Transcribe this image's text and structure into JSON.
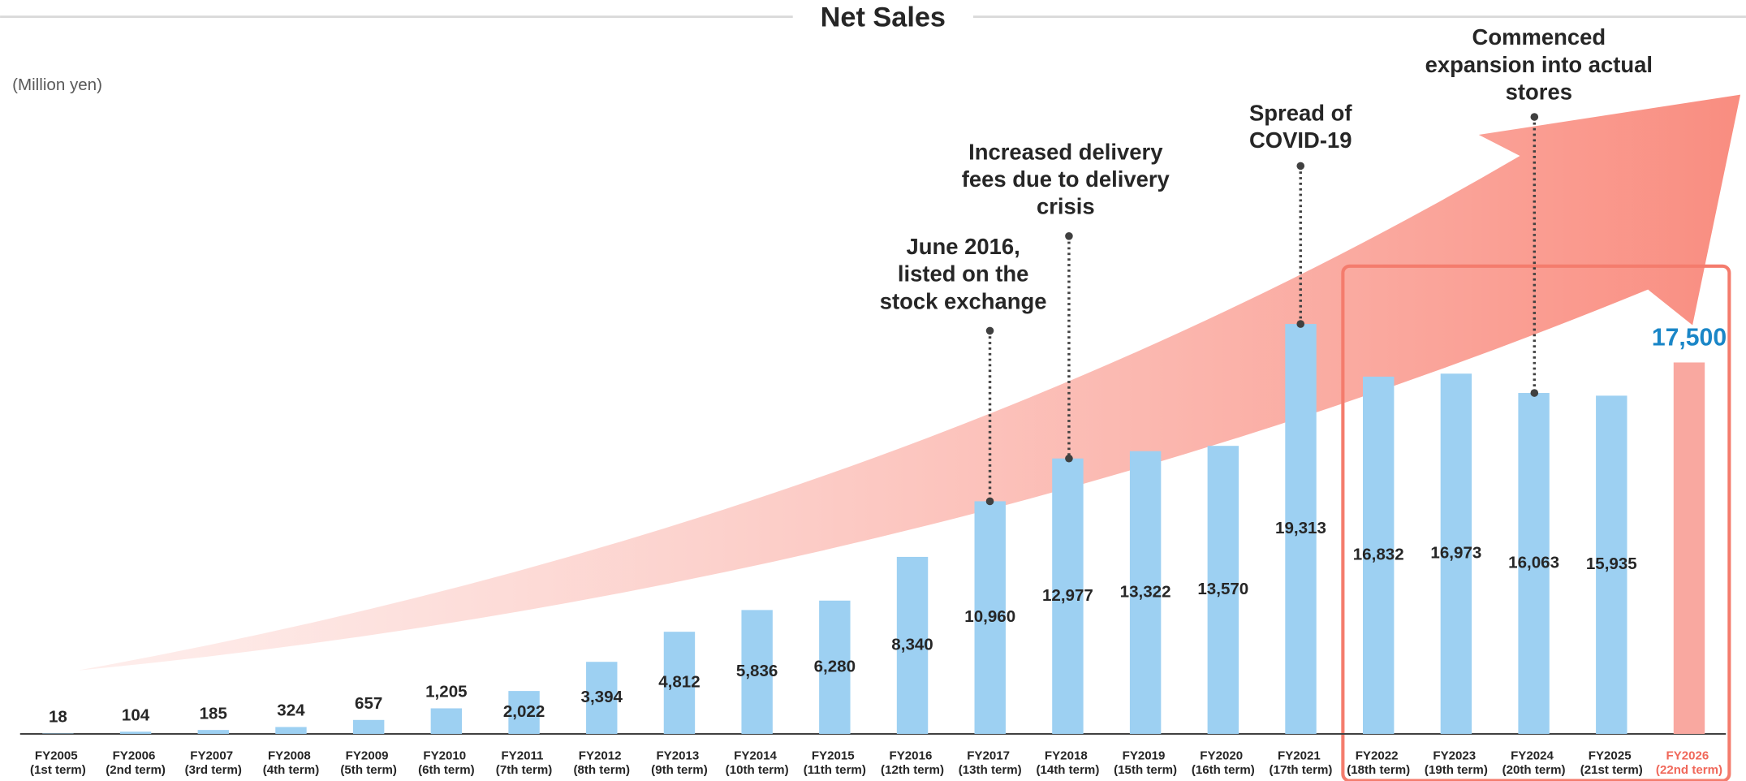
{
  "chart_data": {
    "type": "bar",
    "title": "Net Sales",
    "unit_label": "(Million yen)",
    "categories": [
      "FY2005 (1st term)",
      "FY2006 (2nd term)",
      "FY2007 (3rd term)",
      "FY2008 (4th term)",
      "FY2009 (5th term)",
      "FY2010 (6th term)",
      "FY2011 (7th term)",
      "FY2012 (8th term)",
      "FY2013 (9th term)",
      "FY2014 (10th term)",
      "FY2015 (11th term)",
      "FY2016 (12th term)",
      "FY2017 (13th term)",
      "FY2018 (14th term)",
      "FY2019 (15th term)",
      "FY2020 (16th term)",
      "FY2021 (17th term)",
      "FY2022 (18th term)",
      "FY2023 (19th term)",
      "FY2024 (20th term)",
      "FY2025 (21st term)",
      "FY2026 (22nd term)"
    ],
    "values": [
      18,
      104,
      185,
      324,
      657,
      1205,
      2022,
      3394,
      4812,
      5836,
      6280,
      8340,
      10960,
      12977,
      13322,
      13570,
      19313,
      16832,
      16973,
      16063,
      15935,
      17500
    ],
    "value_labels": [
      "18",
      "104",
      "185",
      "324",
      "657",
      "1,205",
      "2,022",
      "3,394",
      "4,812",
      "5,836",
      "6,280",
      "8,340",
      "10,960",
      "12,977",
      "13,322",
      "13,570",
      "19,313",
      "16,832",
      "16,973",
      "16,063",
      "15,935",
      "17,500"
    ],
    "colors": [
      "#9dd0f2",
      "#9dd0f2",
      "#9dd0f2",
      "#9dd0f2",
      "#9dd0f2",
      "#9dd0f2",
      "#9dd0f2",
      "#9dd0f2",
      "#9dd0f2",
      "#9dd0f2",
      "#9dd0f2",
      "#9dd0f2",
      "#9dd0f2",
      "#9dd0f2",
      "#9dd0f2",
      "#9dd0f2",
      "#9dd0f2",
      "#9dd0f2",
      "#9dd0f2",
      "#9dd0f2",
      "#9dd0f2",
      "#f9a8a0"
    ],
    "ylim": [
      0,
      34000
    ],
    "annotations": [
      {
        "lines": [
          "June 2016,",
          "listed on the",
          "stock exchange"
        ]
      },
      {
        "lines": [
          "Increased delivery",
          "fees due to delivery",
          "crisis"
        ]
      },
      {
        "lines": [
          "Spread of",
          "COVID-19"
        ]
      },
      {
        "lines": [
          "Commenced",
          "expansion into actual",
          "stores"
        ]
      }
    ]
  }
}
